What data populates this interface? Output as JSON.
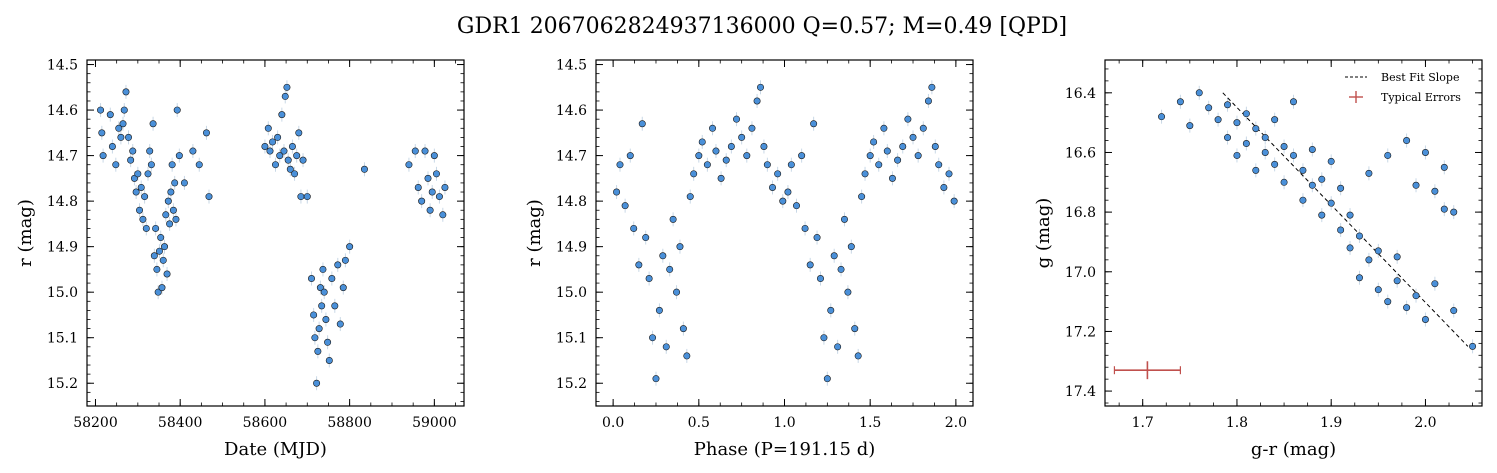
{
  "figure": {
    "title": "GDR1 2067062824937136000  Q=0.57; M=0.49 [QPD]"
  },
  "colors": {
    "point_fill": "#4a90d9",
    "point_edge": "#1a1a1a",
    "errorbar": "#c9d8e6",
    "fit_line": "#000000",
    "typical_error": "#c0504d"
  },
  "chart_data": [
    {
      "type": "scatter",
      "panel": "light-curve",
      "xlabel": "Date (MJD)",
      "ylabel": "r (mag)",
      "xlim": [
        58180,
        59070
      ],
      "ylim": [
        15.25,
        14.49
      ],
      "y_inverted": true,
      "xticks": [
        58200,
        58400,
        58600,
        58800,
        59000
      ],
      "yticks": [
        14.5,
        14.6,
        14.7,
        14.8,
        14.9,
        15.0,
        15.1,
        15.2
      ],
      "ytick_labels": [
        "14.5",
        "14.6",
        "14.7",
        "14.8",
        "14.9",
        "15.0",
        "15.1",
        "15.2"
      ],
      "points": [
        [
          58212,
          14.6
        ],
        [
          58215,
          14.65
        ],
        [
          58218,
          14.7
        ],
        [
          58235,
          14.61
        ],
        [
          58240,
          14.68
        ],
        [
          58248,
          14.72
        ],
        [
          58255,
          14.64
        ],
        [
          58260,
          14.66
        ],
        [
          58265,
          14.63
        ],
        [
          58268,
          14.6
        ],
        [
          58272,
          14.56
        ],
        [
          58278,
          14.66
        ],
        [
          58283,
          14.71
        ],
        [
          58288,
          14.69
        ],
        [
          58292,
          14.75
        ],
        [
          58296,
          14.78
        ],
        [
          58300,
          14.74
        ],
        [
          58304,
          14.82
        ],
        [
          58308,
          14.77
        ],
        [
          58312,
          14.84
        ],
        [
          58316,
          14.79
        ],
        [
          58320,
          14.86
        ],
        [
          58324,
          14.74
        ],
        [
          58328,
          14.69
        ],
        [
          58332,
          14.72
        ],
        [
          58336,
          14.63
        ],
        [
          58339,
          14.92
        ],
        [
          58342,
          14.86
        ],
        [
          58345,
          14.95
        ],
        [
          58348,
          15.0
        ],
        [
          58351,
          14.91
        ],
        [
          58354,
          14.88
        ],
        [
          58357,
          14.99
        ],
        [
          58360,
          14.93
        ],
        [
          58363,
          14.9
        ],
        [
          58366,
          14.83
        ],
        [
          58369,
          14.96
        ],
        [
          58372,
          14.8
        ],
        [
          58375,
          14.85
        ],
        [
          58378,
          14.78
        ],
        [
          58381,
          14.72
        ],
        [
          58384,
          14.82
        ],
        [
          58387,
          14.76
        ],
        [
          58390,
          14.84
        ],
        [
          58393,
          14.6
        ],
        [
          58398,
          14.7
        ],
        [
          58410,
          14.76
        ],
        [
          58430,
          14.69
        ],
        [
          58445,
          14.72
        ],
        [
          58462,
          14.65
        ],
        [
          58468,
          14.79
        ],
        [
          58600,
          14.68
        ],
        [
          58608,
          14.64
        ],
        [
          58612,
          14.69
        ],
        [
          58618,
          14.67
        ],
        [
          58625,
          14.72
        ],
        [
          58630,
          14.66
        ],
        [
          58635,
          14.7
        ],
        [
          58640,
          14.61
        ],
        [
          58645,
          14.69
        ],
        [
          58648,
          14.57
        ],
        [
          58652,
          14.55
        ],
        [
          58655,
          14.71
        ],
        [
          58660,
          14.73
        ],
        [
          58665,
          14.68
        ],
        [
          58670,
          14.74
        ],
        [
          58675,
          14.7
        ],
        [
          58680,
          14.65
        ],
        [
          58685,
          14.79
        ],
        [
          58690,
          14.71
        ],
        [
          58700,
          14.79
        ],
        [
          58710,
          14.97
        ],
        [
          58715,
          15.05
        ],
        [
          58718,
          15.1
        ],
        [
          58722,
          15.2
        ],
        [
          58725,
          15.13
        ],
        [
          58728,
          15.08
        ],
        [
          58731,
          14.99
        ],
        [
          58734,
          15.03
        ],
        [
          58737,
          14.95
        ],
        [
          58740,
          15.0
        ],
        [
          58744,
          15.06
        ],
        [
          58748,
          15.11
        ],
        [
          58752,
          15.15
        ],
        [
          58758,
          14.97
        ],
        [
          58765,
          15.03
        ],
        [
          58772,
          14.94
        ],
        [
          58778,
          15.07
        ],
        [
          58785,
          14.99
        ],
        [
          58790,
          14.93
        ],
        [
          58800,
          14.9
        ],
        [
          58835,
          14.73
        ],
        [
          58940,
          14.72
        ],
        [
          58955,
          14.69
        ],
        [
          58962,
          14.77
        ],
        [
          58970,
          14.8
        ],
        [
          58978,
          14.69
        ],
        [
          58985,
          14.75
        ],
        [
          58990,
          14.82
        ],
        [
          58995,
          14.78
        ],
        [
          59000,
          14.7
        ],
        [
          59005,
          14.74
        ],
        [
          59012,
          14.79
        ],
        [
          59020,
          14.83
        ],
        [
          59025,
          14.77
        ]
      ]
    },
    {
      "type": "scatter",
      "panel": "phased",
      "xlabel": "Phase (P=191.15 d)",
      "ylabel": "r (mag)",
      "xlim": [
        -0.1,
        2.1
      ],
      "ylim": [
        15.25,
        14.49
      ],
      "y_inverted": true,
      "xticks": [
        0.0,
        0.5,
        1.0,
        1.5,
        2.0
      ],
      "xtick_labels": [
        "0.0",
        "0.5",
        "1.0",
        "1.5",
        "2.0"
      ],
      "yticks": [
        14.5,
        14.6,
        14.7,
        14.8,
        14.9,
        15.0,
        15.1,
        15.2
      ],
      "ytick_labels": [
        "14.5",
        "14.6",
        "14.7",
        "14.8",
        "14.9",
        "15.0",
        "15.1",
        "15.2"
      ],
      "points": [
        [
          0.02,
          14.78
        ],
        [
          0.04,
          14.72
        ],
        [
          0.07,
          14.81
        ],
        [
          0.1,
          14.7
        ],
        [
          0.12,
          14.86
        ],
        [
          0.15,
          14.94
        ],
        [
          0.17,
          14.63
        ],
        [
          0.19,
          14.88
        ],
        [
          0.21,
          14.97
        ],
        [
          0.23,
          15.1
        ],
        [
          0.25,
          15.19
        ],
        [
          0.27,
          15.04
        ],
        [
          0.29,
          14.92
        ],
        [
          0.31,
          15.12
        ],
        [
          0.33,
          14.95
        ],
        [
          0.35,
          14.84
        ],
        [
          0.37,
          15.0
        ],
        [
          0.39,
          14.9
        ],
        [
          0.41,
          15.08
        ],
        [
          0.43,
          15.14
        ],
        [
          0.45,
          14.79
        ],
        [
          0.47,
          14.74
        ],
        [
          0.5,
          14.7
        ],
        [
          0.52,
          14.67
        ],
        [
          0.55,
          14.72
        ],
        [
          0.58,
          14.64
        ],
        [
          0.6,
          14.69
        ],
        [
          0.63,
          14.75
        ],
        [
          0.66,
          14.71
        ],
        [
          0.69,
          14.68
        ],
        [
          0.72,
          14.62
        ],
        [
          0.75,
          14.66
        ],
        [
          0.78,
          14.7
        ],
        [
          0.81,
          14.64
        ],
        [
          0.84,
          14.58
        ],
        [
          0.86,
          14.55
        ],
        [
          0.88,
          14.68
        ],
        [
          0.9,
          14.72
        ],
        [
          0.93,
          14.77
        ],
        [
          0.96,
          14.74
        ],
        [
          0.99,
          14.8
        ],
        [
          1.02,
          14.78
        ],
        [
          1.04,
          14.72
        ],
        [
          1.07,
          14.81
        ],
        [
          1.1,
          14.7
        ],
        [
          1.12,
          14.86
        ],
        [
          1.15,
          14.94
        ],
        [
          1.17,
          14.63
        ],
        [
          1.19,
          14.88
        ],
        [
          1.21,
          14.97
        ],
        [
          1.23,
          15.1
        ],
        [
          1.25,
          15.19
        ],
        [
          1.27,
          15.04
        ],
        [
          1.29,
          14.92
        ],
        [
          1.31,
          15.12
        ],
        [
          1.33,
          14.95
        ],
        [
          1.35,
          14.84
        ],
        [
          1.37,
          15.0
        ],
        [
          1.39,
          14.9
        ],
        [
          1.41,
          15.08
        ],
        [
          1.43,
          15.14
        ],
        [
          1.45,
          14.79
        ],
        [
          1.47,
          14.74
        ],
        [
          1.5,
          14.7
        ],
        [
          1.52,
          14.67
        ],
        [
          1.55,
          14.72
        ],
        [
          1.58,
          14.64
        ],
        [
          1.6,
          14.69
        ],
        [
          1.63,
          14.75
        ],
        [
          1.66,
          14.71
        ],
        [
          1.69,
          14.68
        ],
        [
          1.72,
          14.62
        ],
        [
          1.75,
          14.66
        ],
        [
          1.78,
          14.7
        ],
        [
          1.81,
          14.64
        ],
        [
          1.84,
          14.58
        ],
        [
          1.86,
          14.55
        ],
        [
          1.88,
          14.68
        ],
        [
          1.9,
          14.72
        ],
        [
          1.93,
          14.77
        ],
        [
          1.96,
          14.74
        ],
        [
          1.99,
          14.8
        ]
      ]
    },
    {
      "type": "scatter",
      "panel": "color-magnitude",
      "xlabel": "g-r (mag)",
      "ylabel": "g (mag)",
      "xlim": [
        1.66,
        2.06
      ],
      "ylim": [
        17.45,
        16.29
      ],
      "y_inverted": true,
      "xticks": [
        1.7,
        1.8,
        1.9,
        2.0
      ],
      "xtick_labels": [
        "1.7",
        "1.8",
        "1.9",
        "2.0"
      ],
      "yticks": [
        16.4,
        16.6,
        16.8,
        17.0,
        17.2,
        17.4
      ],
      "ytick_labels": [
        "16.4",
        "16.6",
        "16.8",
        "17.0",
        "17.2",
        "17.4"
      ],
      "points": [
        [
          1.72,
          16.48
        ],
        [
          1.74,
          16.43
        ],
        [
          1.75,
          16.51
        ],
        [
          1.76,
          16.4
        ],
        [
          1.77,
          16.45
        ],
        [
          1.78,
          16.49
        ],
        [
          1.79,
          16.44
        ],
        [
          1.79,
          16.55
        ],
        [
          1.8,
          16.5
        ],
        [
          1.8,
          16.61
        ],
        [
          1.81,
          16.47
        ],
        [
          1.81,
          16.57
        ],
        [
          1.82,
          16.52
        ],
        [
          1.82,
          16.66
        ],
        [
          1.83,
          16.55
        ],
        [
          1.83,
          16.6
        ],
        [
          1.84,
          16.49
        ],
        [
          1.84,
          16.64
        ],
        [
          1.85,
          16.58
        ],
        [
          1.85,
          16.7
        ],
        [
          1.86,
          16.61
        ],
        [
          1.86,
          16.43
        ],
        [
          1.87,
          16.66
        ],
        [
          1.87,
          16.76
        ],
        [
          1.88,
          16.59
        ],
        [
          1.88,
          16.71
        ],
        [
          1.89,
          16.81
        ],
        [
          1.89,
          16.69
        ],
        [
          1.9,
          16.77
        ],
        [
          1.9,
          16.63
        ],
        [
          1.91,
          16.86
        ],
        [
          1.91,
          16.72
        ],
        [
          1.92,
          16.92
        ],
        [
          1.92,
          16.81
        ],
        [
          1.93,
          17.02
        ],
        [
          1.93,
          16.88
        ],
        [
          1.94,
          16.96
        ],
        [
          1.94,
          16.67
        ],
        [
          1.95,
          17.06
        ],
        [
          1.95,
          16.93
        ],
        [
          1.96,
          17.1
        ],
        [
          1.96,
          16.61
        ],
        [
          1.97,
          17.03
        ],
        [
          1.97,
          16.95
        ],
        [
          1.98,
          17.12
        ],
        [
          1.98,
          16.56
        ],
        [
          1.99,
          17.08
        ],
        [
          1.99,
          16.71
        ],
        [
          2.0,
          17.16
        ],
        [
          2.0,
          16.6
        ],
        [
          2.01,
          17.04
        ],
        [
          2.01,
          16.73
        ],
        [
          2.02,
          16.79
        ],
        [
          2.02,
          16.65
        ],
        [
          2.03,
          17.13
        ],
        [
          2.03,
          16.8
        ],
        [
          2.05,
          17.25
        ]
      ],
      "fit_line": {
        "x": [
          1.785,
          2.045
        ],
        "y": [
          16.4,
          17.25
        ]
      },
      "typical_error": {
        "x": 1.705,
        "y": 17.33,
        "xerr": 0.035,
        "yerr": 0.03
      },
      "legend": {
        "placement": "top-right",
        "entries": [
          "Best Fit Slope",
          "Typical Errors"
        ]
      }
    }
  ]
}
